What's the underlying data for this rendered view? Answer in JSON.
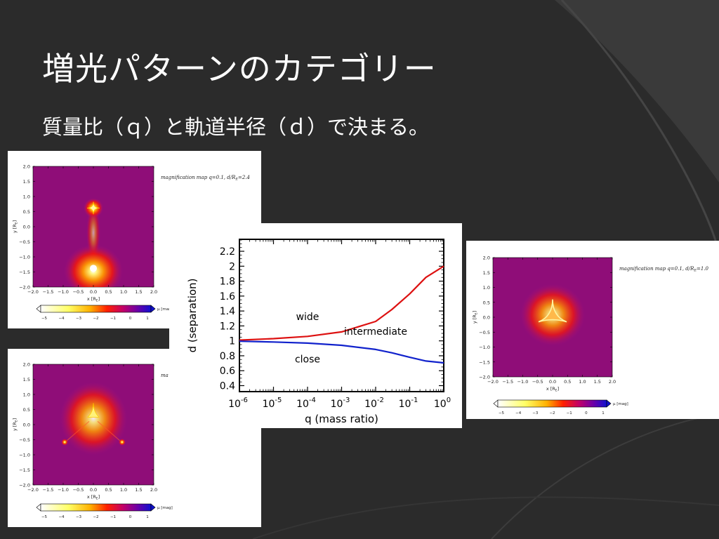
{
  "slide": {
    "title": "増光パターンのカテゴリー",
    "subtitle": "質量比（ｑ）と軌道半径（ｄ）で決まる。",
    "colors": {
      "background": "#2b2b2b",
      "text": "#ffffff"
    }
  },
  "chart_data": [
    {
      "type": "heatmap",
      "caption": "magnification map   q=0.1, d/R",
      "caption_sub": "E",
      "caption_tail": "=2.4",
      "xlabel": "x [R",
      "ylabel": "y [R",
      "label_sub": "E",
      "label_close": "]",
      "x_ticks": [
        "−2.0",
        "−1.5",
        "−1.0",
        "−0.5",
        "0.0",
        "0.5",
        "1.0",
        "1.5",
        "2.0"
      ],
      "y_ticks": [
        "2.0",
        "1.5",
        "1.0",
        "0.5",
        "0.0",
        "−0.5",
        "−1.0",
        "−1.5",
        "−2.0"
      ],
      "xlim": [
        -2.0,
        2.0
      ],
      "ylim": [
        -2.0,
        2.0
      ],
      "colorbar_label": "μ [mag]",
      "colorbar_ticks": [
        "−5",
        "−4",
        "−3",
        "−2",
        "−1",
        "0",
        "1"
      ],
      "hotspots": [
        {
          "x": 0.0,
          "y": 0.62,
          "shape": "astroid"
        },
        {
          "x": 0.0,
          "y": -1.38,
          "shape": "blob"
        }
      ]
    },
    {
      "type": "heatmap",
      "caption": "ma",
      "xlabel": "x [R",
      "ylabel": "y [R",
      "label_sub": "E",
      "label_close": "]",
      "x_ticks": [
        "−2.0",
        "−1.5",
        "−1.0",
        "−0.5",
        "0.0",
        "0.5",
        "1.0",
        "1.5",
        "2.0"
      ],
      "y_ticks": [
        "2.0",
        "1.5",
        "1.0",
        "0.5",
        "0.0",
        "−0.5",
        "−1.0",
        "−1.5",
        "−2.0"
      ],
      "xlim": [
        -2.0,
        2.0
      ],
      "ylim": [
        -2.0,
        2.0
      ],
      "colorbar_label": "μ [mag]",
      "colorbar_ticks": [
        "−5",
        "−4",
        "−3",
        "−2",
        "−1",
        "0",
        "1"
      ],
      "hotspots": [
        {
          "x": 0.0,
          "y": 0.48,
          "shape": "cusp"
        },
        {
          "x": -0.95,
          "y": -0.58,
          "shape": "dot"
        },
        {
          "x": 0.95,
          "y": -0.58,
          "shape": "dot"
        }
      ]
    },
    {
      "type": "line",
      "xlabel": "q (mass ratio)",
      "ylabel": "d (separation)",
      "xscale": "log",
      "x_ticks": [
        {
          "base": "10",
          "exp": "-6"
        },
        {
          "base": "10",
          "exp": "-5"
        },
        {
          "base": "10",
          "exp": "-4"
        },
        {
          "base": "10",
          "exp": "-3"
        },
        {
          "base": "10",
          "exp": "-2"
        },
        {
          "base": "10",
          "exp": "-1"
        },
        {
          "base": "10",
          "exp": "0"
        }
      ],
      "y_ticks": [
        "0.4",
        "0.6",
        "0.8",
        "1",
        "1.2",
        "1.4",
        "1.6",
        "1.8",
        "2",
        "2.2"
      ],
      "xlim": [
        1e-06,
        1
      ],
      "ylim": [
        0.32,
        2.36
      ],
      "series": [
        {
          "color": "#dd1111",
          "x": [
            1e-06,
            1e-05,
            0.0001,
            0.001,
            0.01,
            0.03,
            0.1,
            0.3,
            1
          ],
          "y": [
            1.01,
            1.03,
            1.06,
            1.12,
            1.26,
            1.42,
            1.63,
            1.85,
            2.0
          ]
        },
        {
          "color": "#1122cc",
          "x": [
            1e-06,
            1e-05,
            0.0001,
            0.001,
            0.01,
            0.03,
            0.1,
            0.3,
            1
          ],
          "y": [
            0.995,
            0.985,
            0.97,
            0.94,
            0.885,
            0.84,
            0.78,
            0.73,
            0.705
          ]
        }
      ],
      "annotations": [
        {
          "text": "wide",
          "x": 0.0001,
          "y": 1.28
        },
        {
          "text": "intermediate",
          "x": 0.01,
          "y": 1.08
        },
        {
          "text": "close",
          "x": 0.0001,
          "y": 0.71
        }
      ]
    },
    {
      "type": "heatmap",
      "caption": "magnification map   q=0.1, d/R",
      "caption_sub": "E",
      "caption_tail": "=1.0",
      "xlabel": "x [R",
      "ylabel": "y [R",
      "label_sub": "E",
      "label_close": "]",
      "x_ticks": [
        "−2.0",
        "−1.5",
        "−1.0",
        "−0.5",
        "0.0",
        "0.5",
        "1.0",
        "1.5",
        "2.0"
      ],
      "y_ticks": [
        "2.0",
        "1.5",
        "1.0",
        "0.5",
        "0.0",
        "−0.5",
        "−1.0",
        "−1.5",
        "−2.0"
      ],
      "xlim": [
        -2.0,
        2.0
      ],
      "ylim": [
        -2.0,
        2.0
      ],
      "colorbar_label": "μ [mag]",
      "colorbar_ticks": [
        "−5",
        "−4",
        "−3",
        "−2",
        "−1",
        "0",
        "1"
      ],
      "hotspots": [
        {
          "x": 0.0,
          "y": 0.08,
          "shape": "resonant"
        }
      ]
    }
  ]
}
